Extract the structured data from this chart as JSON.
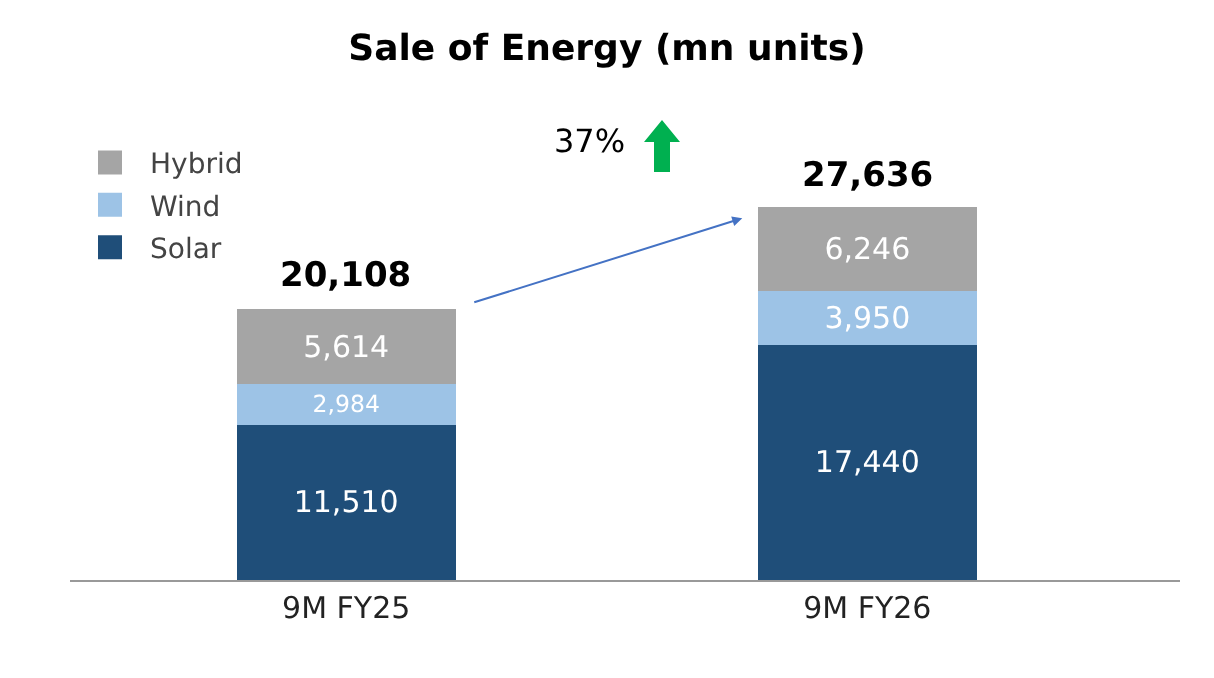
{
  "chart_data": {
    "type": "bar",
    "title": "Sale of Energy (mn units)",
    "categories": [
      "9M FY25",
      "9M FY26"
    ],
    "stacked": true,
    "series": [
      {
        "name": "Solar",
        "color": "#1f4e79",
        "values": [
          11510,
          17440
        ],
        "value_labels": [
          "11,510",
          "17,440"
        ]
      },
      {
        "name": "Wind",
        "color": "#9dc3e6",
        "values": [
          2984,
          3950
        ],
        "value_labels": [
          "2,984",
          "3,950"
        ]
      },
      {
        "name": "Hybrid",
        "color": "#a5a5a5",
        "values": [
          5614,
          6246
        ],
        "value_labels": [
          "5,614",
          "6,246"
        ]
      }
    ],
    "totals": [
      "20,108",
      "27,636"
    ],
    "annotations": [
      "37%"
    ],
    "legend": "top left"
  }
}
